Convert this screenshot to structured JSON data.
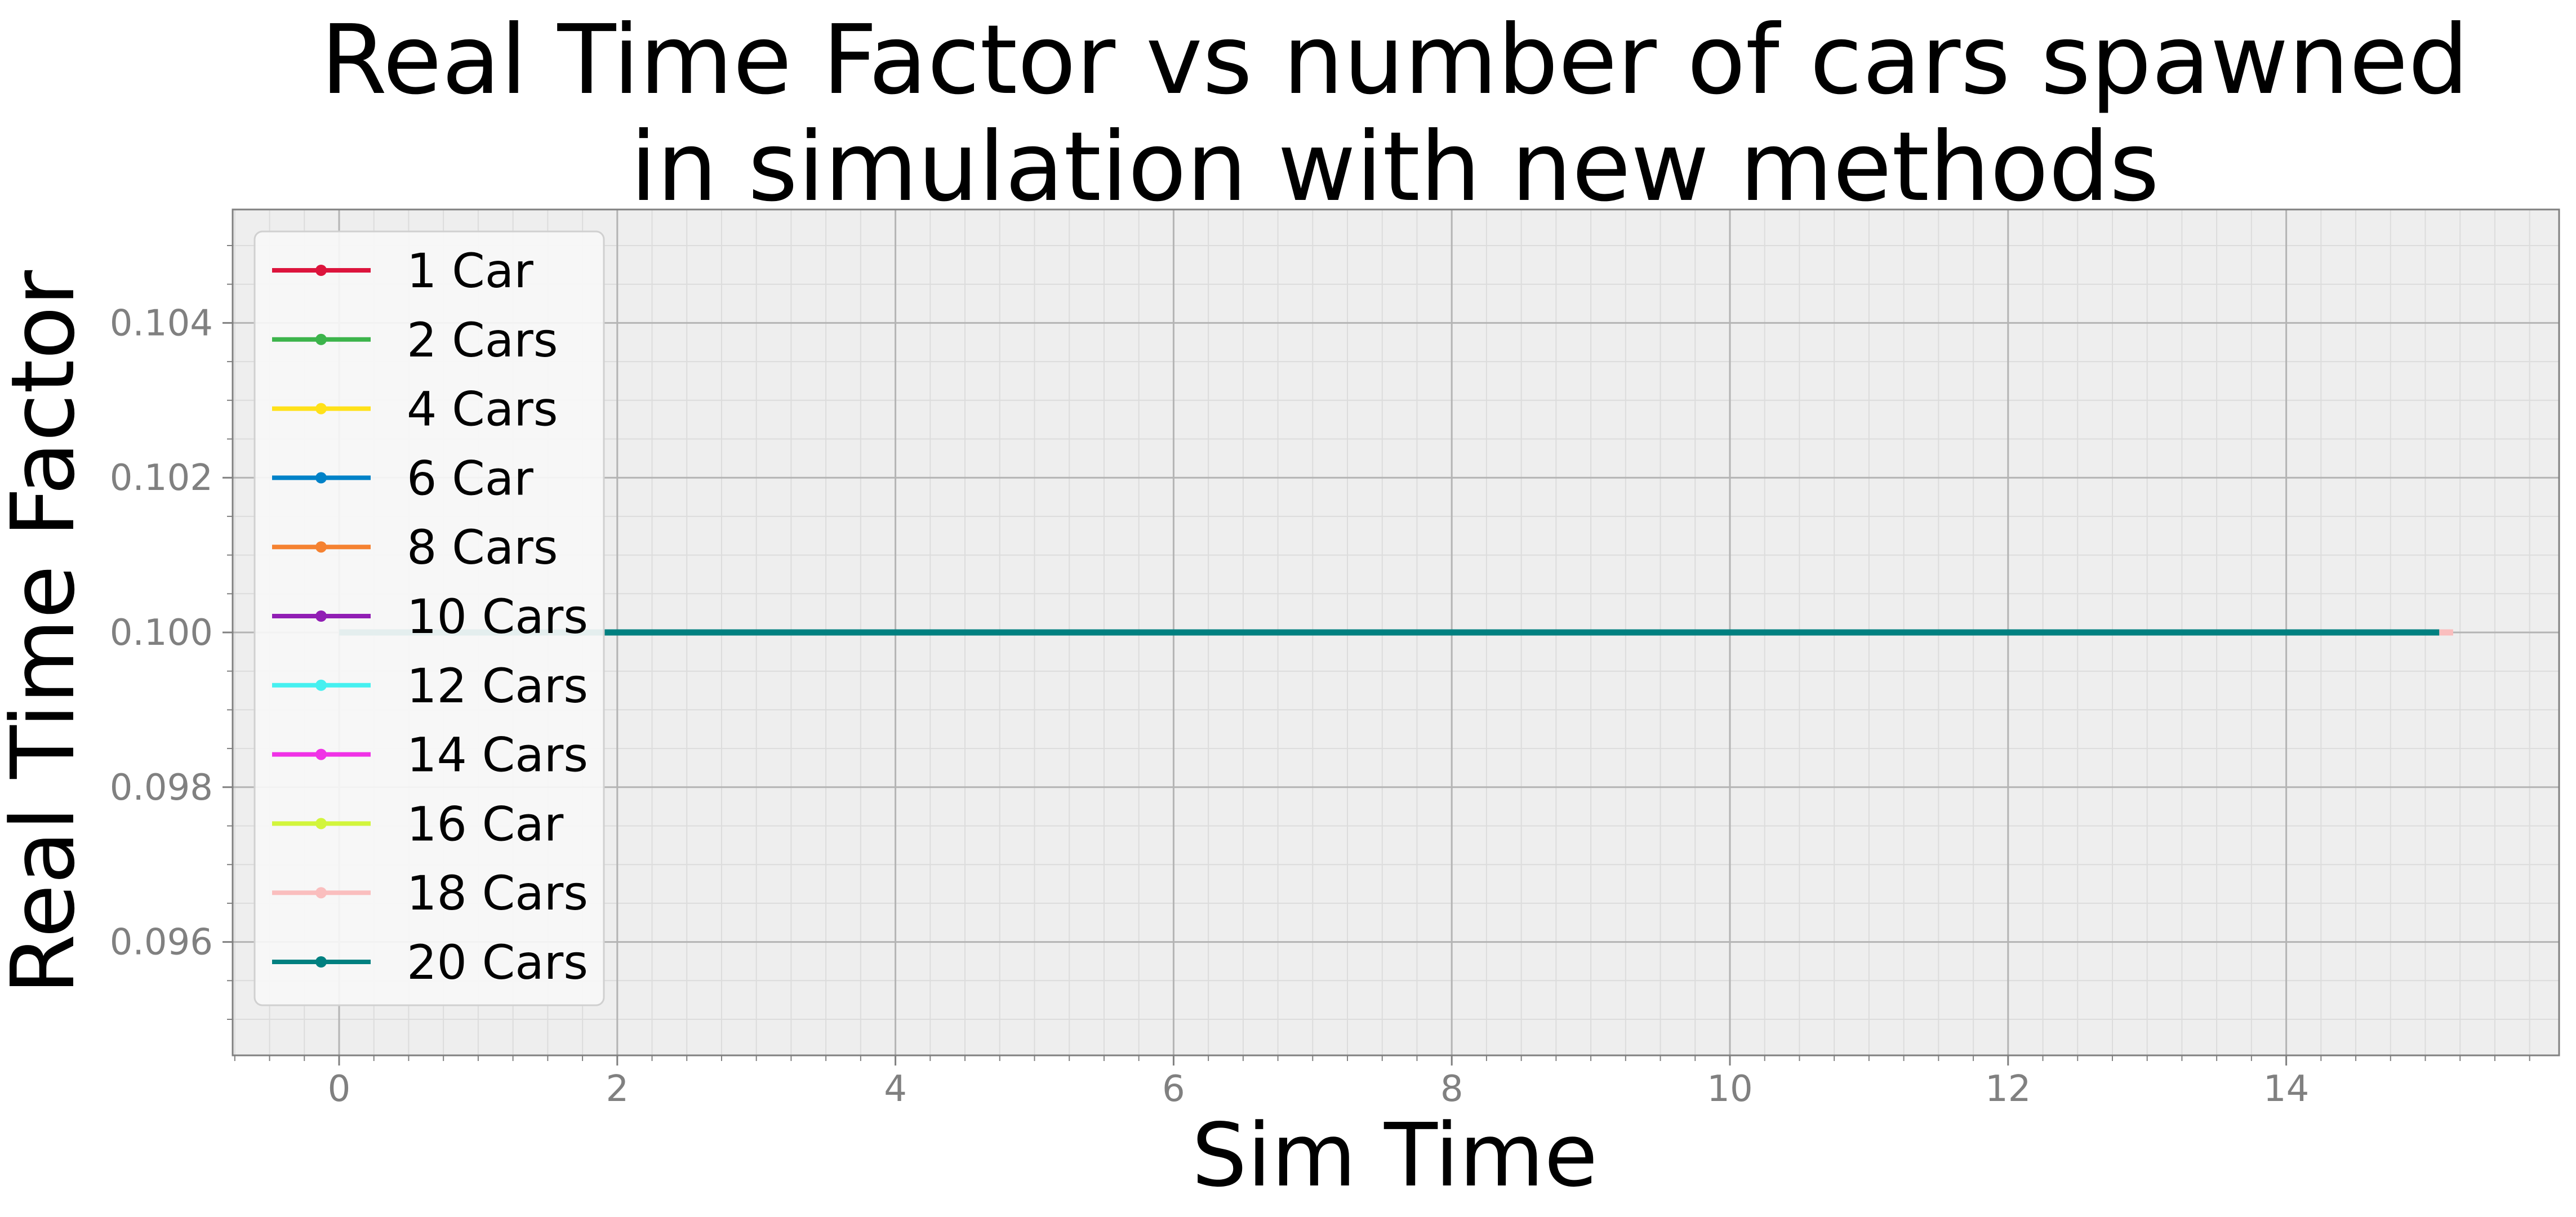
{
  "chart_data": {
    "type": "line",
    "title": "Real Time Factor vs number of cars spawned in simulation with new methods",
    "title_lines": [
      "Real Time Factor vs number of cars spawned",
      "in simulation with new methods"
    ],
    "xlabel": "Sim Time",
    "ylabel": "Real Time Factor",
    "xlim": [
      -0.75,
      15.95
    ],
    "ylim": [
      0.0945,
      0.1055
    ],
    "x_ticks": [
      0,
      2,
      4,
      6,
      8,
      10,
      12,
      14
    ],
    "x_tick_labels": [
      "0",
      "2",
      "4",
      "6",
      "8",
      "10",
      "12",
      "14"
    ],
    "y_ticks": [
      0.096,
      0.098,
      0.1,
      0.102,
      0.104
    ],
    "y_tick_labels": [
      "0.096",
      "0.098",
      "0.100",
      "0.102",
      "0.104"
    ],
    "grid": true,
    "minor_grid": true,
    "legend_position": "top-left",
    "background": "#eeeeee",
    "series": [
      {
        "name": "1 Car",
        "color": "#dc143c",
        "x": [
          0,
          15.1
        ],
        "y": [
          0.1,
          0.1
        ]
      },
      {
        "name": "2 Cars",
        "color": "#3cb44b",
        "x": [
          0,
          15.1
        ],
        "y": [
          0.1,
          0.1
        ]
      },
      {
        "name": "4 Cars",
        "color": "#ffe119",
        "x": [
          0,
          15.1
        ],
        "y": [
          0.1,
          0.1
        ]
      },
      {
        "name": "6 Car",
        "color": "#0082c8",
        "x": [
          0,
          15.1
        ],
        "y": [
          0.1,
          0.1
        ]
      },
      {
        "name": "8 Cars",
        "color": "#f58231",
        "x": [
          0,
          15.1
        ],
        "y": [
          0.1,
          0.1
        ]
      },
      {
        "name": "10 Cars",
        "color": "#911eb4",
        "x": [
          0,
          15.1
        ],
        "y": [
          0.1,
          0.1
        ]
      },
      {
        "name": "12 Cars",
        "color": "#46f0f0",
        "x": [
          0,
          15.1
        ],
        "y": [
          0.1,
          0.1
        ]
      },
      {
        "name": "14 Cars",
        "color": "#f032e6",
        "x": [
          0,
          15.1
        ],
        "y": [
          0.1,
          0.1
        ]
      },
      {
        "name": "16 Car",
        "color": "#d2f53c",
        "x": [
          0,
          15.1
        ],
        "y": [
          0.1,
          0.1
        ]
      },
      {
        "name": "18 Cars",
        "color": "#fabebe",
        "x": [
          0,
          15.2
        ],
        "y": [
          0.1,
          0.1
        ]
      },
      {
        "name": "20 Cars",
        "color": "#008080",
        "x": [
          0,
          15.1
        ],
        "y": [
          0.1,
          0.1
        ]
      }
    ]
  }
}
